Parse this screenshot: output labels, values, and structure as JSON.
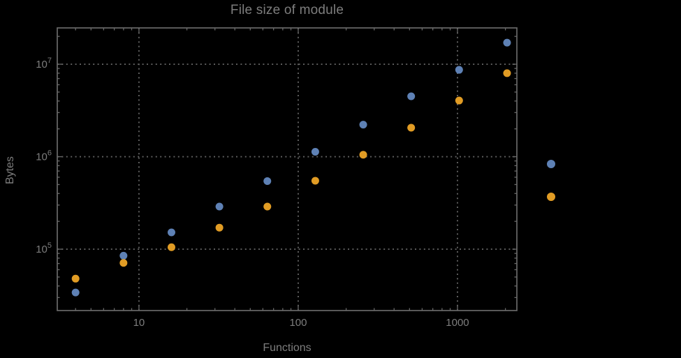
{
  "figure": {
    "title": "File size of module",
    "xlabel": "Functions",
    "ylabel": "Bytes",
    "background_color": "#000000",
    "text_color": "#7d7d7d",
    "frame_color": "#696969",
    "grid_color": "#616161"
  },
  "chart_data": {
    "type": "scatter",
    "title": "File size of module",
    "xlabel": "Functions",
    "ylabel": "Bytes",
    "xscale": "log",
    "yscale": "log",
    "xlim": [
      3.07,
      2360
    ],
    "ylim": [
      21700,
      24700000
    ],
    "grid": "dotted, at decade lines only",
    "x_major_ticks": [
      10,
      100,
      1000
    ],
    "x_tick_labels": [
      "10",
      "100",
      "1000"
    ],
    "y_major_ticks": [
      100000,
      1000000,
      10000000
    ],
    "y_tick_labels": [
      {
        "base": "10",
        "exp": "5"
      },
      {
        "base": "10",
        "exp": "6"
      },
      {
        "base": "10",
        "exp": "7"
      }
    ],
    "x": [
      4,
      8,
      16,
      32,
      64,
      128,
      256,
      512,
      1024,
      2048
    ],
    "series": [
      {
        "name": "series-blue",
        "color": "#5E81B5",
        "values": [
          34000,
          85000,
          152000,
          289000,
          545000,
          1130000,
          2220000,
          4500000,
          8700000,
          17100000
        ]
      },
      {
        "name": "series-orange",
        "color": "#E19C24",
        "values": [
          48000,
          71000,
          105000,
          171000,
          289000,
          550000,
          1050000,
          2060000,
          4050000,
          8000000
        ]
      }
    ],
    "legend": {
      "position": "outside-right",
      "markers": [
        {
          "name": "legend-marker-blue",
          "color": "#5E81B5"
        },
        {
          "name": "legend-marker-orange",
          "color": "#E19C24"
        }
      ]
    },
    "marker_radius_px": 5.5
  }
}
